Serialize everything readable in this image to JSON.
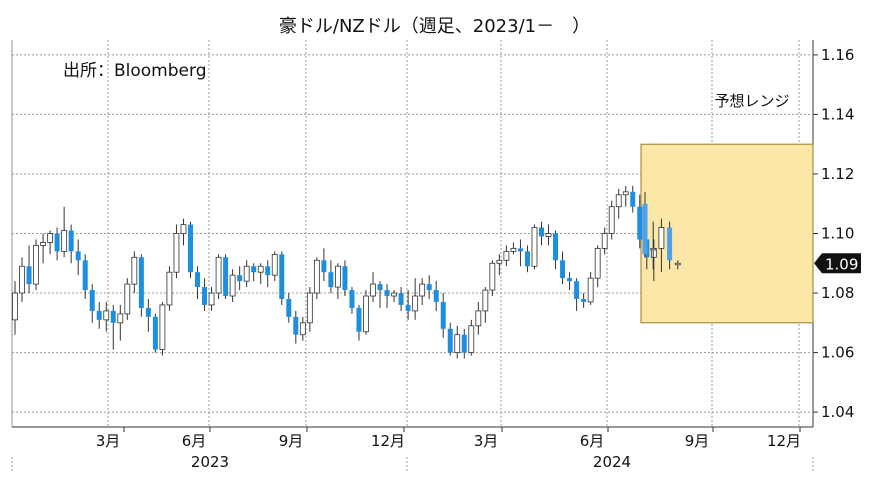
{
  "chart_data": {
    "type": "candlestick",
    "title": "豪ドル/NZドル（週足、2023/1－　）",
    "source": "出所：Bloomberg",
    "y_ticks": [
      "1.16",
      "1.14",
      "1.12",
      "1.10",
      "1.08",
      "1.06",
      "1.04"
    ],
    "ylim": [
      1.035,
      1.165
    ],
    "x_month_labels": [
      "3月",
      "6月",
      "9月",
      "12月",
      "3月",
      "6月",
      "9月",
      "12月"
    ],
    "x_year_labels": [
      "2023",
      "2024"
    ],
    "forecast_label": "予想レンジ",
    "forecast_range": [
      1.07,
      1.13
    ],
    "current_value_label": "1.09",
    "current_value": 1.09,
    "colors": {
      "up_fill": "#ffffff",
      "down_fill": "#1e8fe0",
      "forecast_box": "#fbe7a8",
      "forecast_border": "#9a7a22",
      "latest": "#4ea0e8"
    },
    "candles": [
      [
        1.071,
        1.08,
        1.066,
        1.084
      ],
      [
        1.08,
        1.089,
        1.077,
        1.092
      ],
      [
        1.089,
        1.083,
        1.08,
        1.096
      ],
      [
        1.083,
        1.096,
        1.081,
        1.098
      ],
      [
        1.096,
        1.097,
        1.09,
        1.1
      ],
      [
        1.097,
        1.1,
        1.093,
        1.101
      ],
      [
        1.1,
        1.094,
        1.091,
        1.102
      ],
      [
        1.094,
        1.101,
        1.092,
        1.109
      ],
      [
        1.101,
        1.094,
        1.09,
        1.103
      ],
      [
        1.094,
        1.091,
        1.086,
        1.098
      ],
      [
        1.091,
        1.081,
        1.078,
        1.093
      ],
      [
        1.081,
        1.074,
        1.07,
        1.083
      ],
      [
        1.074,
        1.071,
        1.068,
        1.077
      ],
      [
        1.071,
        1.074,
        1.067,
        1.077
      ],
      [
        1.074,
        1.07,
        1.061,
        1.076
      ],
      [
        1.07,
        1.073,
        1.064,
        1.076
      ],
      [
        1.073,
        1.083,
        1.071,
        1.085
      ],
      [
        1.083,
        1.092,
        1.08,
        1.094
      ],
      [
        1.092,
        1.075,
        1.072,
        1.093
      ],
      [
        1.075,
        1.072,
        1.067,
        1.078
      ],
      [
        1.072,
        1.061,
        1.06,
        1.073
      ],
      [
        1.061,
        1.076,
        1.059,
        1.077
      ],
      [
        1.076,
        1.087,
        1.074,
        1.089
      ],
      [
        1.087,
        1.1,
        1.085,
        1.103
      ],
      [
        1.1,
        1.103,
        1.096,
        1.105
      ],
      [
        1.103,
        1.087,
        1.085,
        1.104
      ],
      [
        1.087,
        1.082,
        1.078,
        1.089
      ],
      [
        1.082,
        1.076,
        1.074,
        1.085
      ],
      [
        1.076,
        1.08,
        1.074,
        1.082
      ],
      [
        1.08,
        1.092,
        1.078,
        1.093
      ],
      [
        1.092,
        1.079,
        1.078,
        1.093
      ],
      [
        1.079,
        1.086,
        1.077,
        1.088
      ],
      [
        1.086,
        1.084,
        1.081,
        1.089
      ],
      [
        1.084,
        1.089,
        1.082,
        1.091
      ],
      [
        1.089,
        1.087,
        1.084,
        1.09
      ],
      [
        1.087,
        1.089,
        1.083,
        1.09
      ],
      [
        1.089,
        1.086,
        1.082,
        1.091
      ],
      [
        1.086,
        1.093,
        1.084,
        1.094
      ],
      [
        1.093,
        1.078,
        1.076,
        1.094
      ],
      [
        1.078,
        1.072,
        1.07,
        1.08
      ],
      [
        1.072,
        1.066,
        1.063,
        1.074
      ],
      [
        1.066,
        1.07,
        1.064,
        1.072
      ],
      [
        1.07,
        1.08,
        1.067,
        1.082
      ],
      [
        1.08,
        1.091,
        1.078,
        1.092
      ],
      [
        1.091,
        1.087,
        1.084,
        1.095
      ],
      [
        1.087,
        1.082,
        1.08,
        1.091
      ],
      [
        1.082,
        1.089,
        1.078,
        1.09
      ],
      [
        1.089,
        1.081,
        1.079,
        1.091
      ],
      [
        1.081,
        1.075,
        1.073,
        1.082
      ],
      [
        1.075,
        1.067,
        1.064,
        1.076
      ],
      [
        1.067,
        1.079,
        1.066,
        1.081
      ],
      [
        1.079,
        1.083,
        1.077,
        1.087
      ],
      [
        1.083,
        1.081,
        1.075,
        1.084
      ],
      [
        1.081,
        1.079,
        1.075,
        1.083
      ],
      [
        1.079,
        1.08,
        1.077,
        1.081
      ],
      [
        1.08,
        1.076,
        1.074,
        1.082
      ],
      [
        1.076,
        1.074,
        1.071,
        1.081
      ],
      [
        1.074,
        1.079,
        1.071,
        1.085
      ],
      [
        1.079,
        1.083,
        1.076,
        1.085
      ],
      [
        1.083,
        1.081,
        1.078,
        1.086
      ],
      [
        1.081,
        1.077,
        1.074,
        1.084
      ],
      [
        1.077,
        1.068,
        1.065,
        1.08
      ],
      [
        1.068,
        1.06,
        1.059,
        1.07
      ],
      [
        1.06,
        1.066,
        1.058,
        1.069
      ],
      [
        1.066,
        1.06,
        1.058,
        1.068
      ],
      [
        1.06,
        1.069,
        1.059,
        1.071
      ],
      [
        1.069,
        1.074,
        1.066,
        1.077
      ],
      [
        1.074,
        1.081,
        1.07,
        1.082
      ],
      [
        1.081,
        1.09,
        1.079,
        1.091
      ],
      [
        1.09,
        1.091,
        1.086,
        1.093
      ],
      [
        1.091,
        1.094,
        1.089,
        1.096
      ],
      [
        1.094,
        1.095,
        1.093,
        1.097
      ],
      [
        1.095,
        1.094,
        1.089,
        1.098
      ],
      [
        1.094,
        1.089,
        1.087,
        1.096
      ],
      [
        1.089,
        1.102,
        1.088,
        1.103
      ],
      [
        1.102,
        1.099,
        1.096,
        1.104
      ],
      [
        1.099,
        1.1,
        1.096,
        1.103
      ],
      [
        1.1,
        1.091,
        1.088,
        1.101
      ],
      [
        1.091,
        1.085,
        1.083,
        1.094
      ],
      [
        1.085,
        1.084,
        1.081,
        1.087
      ],
      [
        1.084,
        1.078,
        1.074,
        1.085
      ],
      [
        1.078,
        1.077,
        1.075,
        1.08
      ],
      [
        1.077,
        1.085,
        1.076,
        1.087
      ],
      [
        1.085,
        1.095,
        1.082,
        1.096
      ],
      [
        1.095,
        1.1,
        1.093,
        1.102
      ],
      [
        1.1,
        1.109,
        1.098,
        1.111
      ],
      [
        1.109,
        1.113,
        1.105,
        1.115
      ],
      [
        1.113,
        1.114,
        1.109,
        1.116
      ],
      [
        1.114,
        1.109,
        1.107,
        1.116
      ],
      [
        1.109,
        1.098,
        1.095,
        1.113
      ],
      [
        1.098,
        1.092,
        1.088,
        1.104
      ],
      [
        1.092,
        1.095,
        1.084,
        1.098
      ]
    ],
    "forecast_candles": [
      [
        1.11,
        1.093,
        1.092,
        1.114
      ],
      [
        1.095,
        1.095,
        1.088,
        1.104
      ],
      [
        1.095,
        1.102,
        1.087,
        1.105
      ],
      [
        1.102,
        1.091,
        1.088,
        1.104
      ],
      [
        1.09,
        1.09,
        1.088,
        1.091
      ]
    ]
  }
}
